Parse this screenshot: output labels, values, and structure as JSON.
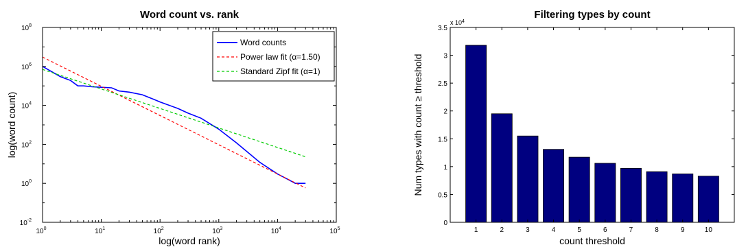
{
  "chart_data": [
    {
      "type": "line",
      "title": "Word count vs. rank",
      "xlabel": "log(word rank)",
      "ylabel": "log(word count)",
      "xscale": "log",
      "yscale": "log",
      "xlim": [
        1,
        100000
      ],
      "ylim": [
        0.01,
        100000000
      ],
      "x_ticks": [
        {
          "base": "10",
          "exp": "0"
        },
        {
          "base": "10",
          "exp": "1"
        },
        {
          "base": "10",
          "exp": "2"
        },
        {
          "base": "10",
          "exp": "3"
        },
        {
          "base": "10",
          "exp": "4"
        },
        {
          "base": "10",
          "exp": "5"
        }
      ],
      "y_ticks": [
        {
          "base": "10",
          "exp": "-2"
        },
        {
          "base": "10",
          "exp": "0"
        },
        {
          "base": "10",
          "exp": "2"
        },
        {
          "base": "10",
          "exp": "4"
        },
        {
          "base": "10",
          "exp": "6"
        },
        {
          "base": "10",
          "exp": "8"
        }
      ],
      "grid": false,
      "legend_position": "top-right",
      "series": [
        {
          "name": "Word counts",
          "color": "#0000ff",
          "style": "solid",
          "x": [
            1,
            2,
            3,
            4,
            5,
            7,
            10,
            15,
            20,
            30,
            50,
            80,
            100,
            200,
            300,
            500,
            1000,
            2000,
            5000,
            10000,
            15000,
            20000,
            30000
          ],
          "y": [
            1000000,
            300000,
            190000,
            100000,
            100000,
            90000,
            85000,
            80000,
            55000,
            48000,
            35000,
            20000,
            15000,
            7000,
            4000,
            2200,
            600,
            120,
            12,
            3,
            1.6,
            1,
            1
          ]
        },
        {
          "name": "Power law fit (α=1.50)",
          "color": "#ff0000",
          "style": "dashed",
          "x": [
            1,
            30000
          ],
          "y": [
            3000000,
            0.58
          ]
        },
        {
          "name": "Standard Zipf fit (α=1)",
          "color": "#00cc00",
          "style": "dashed",
          "x": [
            1,
            30000
          ],
          "y": [
            700000,
            23
          ]
        }
      ]
    },
    {
      "type": "bar",
      "title": "Filtering types by count",
      "xlabel": "count threshold",
      "ylabel": "Num types with count ≥ threshold",
      "y_multiplier_base": "x 10",
      "y_multiplier_exp": "4",
      "categories": [
        "1",
        "2",
        "3",
        "4",
        "5",
        "6",
        "7",
        "8",
        "9",
        "10"
      ],
      "values": [
        3.18,
        1.95,
        1.55,
        1.31,
        1.17,
        1.06,
        0.97,
        0.91,
        0.87,
        0.83
      ],
      "ylim": [
        0,
        3.5
      ],
      "y_ticks": [
        "0",
        "0.5",
        "1",
        "1.5",
        "2",
        "2.5",
        "3",
        "3.5"
      ],
      "bar_color": "#000080",
      "grid": false
    }
  ]
}
